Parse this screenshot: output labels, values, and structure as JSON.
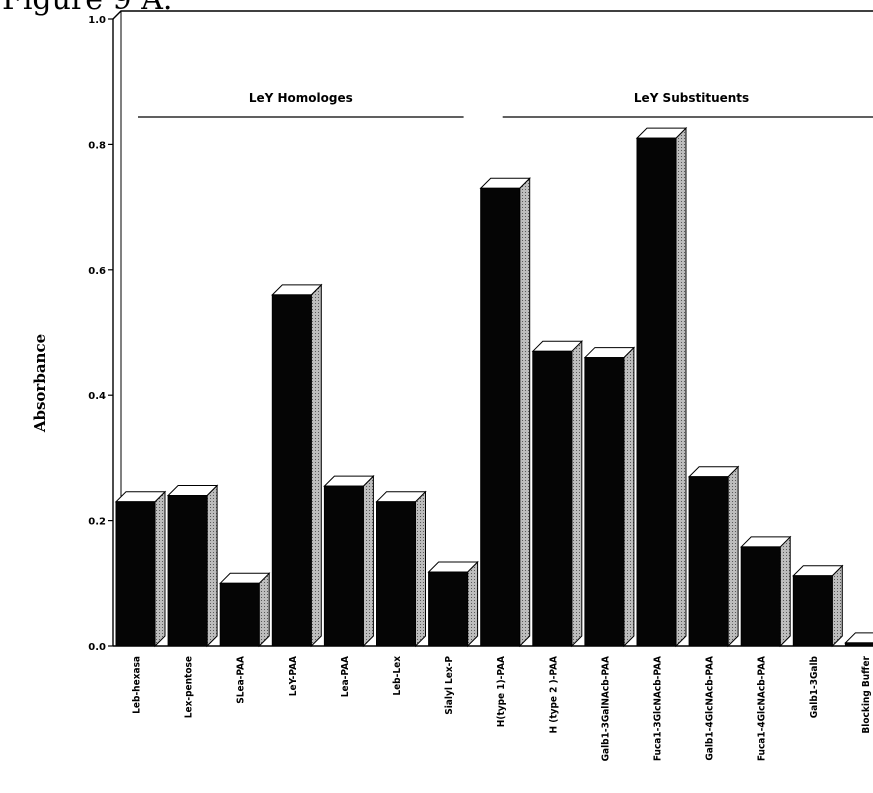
{
  "figure_label": "Figure 9 A.",
  "chart_data": {
    "type": "bar",
    "ylabel": "Absorbance",
    "xlabel": "",
    "ylim": [
      0,
      1.0
    ],
    "yticks": [
      "0.0",
      "0.2",
      "0.4",
      "0.6",
      "0.8",
      "1.0"
    ],
    "yticks_values": [
      0,
      0.2,
      0.4,
      0.6,
      0.8,
      1.0
    ],
    "categories": [
      "Leb-hexasa",
      "Lex-pentose",
      "SLea-PAA",
      "LeY-PAA",
      "Lea-PAA",
      "Leb-Lex",
      "Sialyl Lex-P",
      "H(type 1)-PAA",
      "H (type 2 )-PAA",
      "Galb1-3GalNAcb-PAA",
      "Fuca1-3GlcNAcb-PAA",
      "Galb1-4GlcNAcb-PAA",
      "Fuca1-4GlcNAcb-PAA",
      "Galb1-3Galb",
      "Blocking Buffer"
    ],
    "values": [
      0.23,
      0.24,
      0.1,
      0.56,
      0.255,
      0.23,
      0.118,
      0.73,
      0.47,
      0.46,
      0.81,
      0.27,
      0.158,
      0.112,
      0.005
    ],
    "groups": [
      {
        "label": "LeY Homologes",
        "from": 0,
        "to": 6
      },
      {
        "label": "LeY Substituents",
        "from": 7,
        "to": 14
      }
    ],
    "colors": {
      "bar_front": "#050505",
      "bar_side": "#a8a8a8",
      "bar_top": "#ffffff"
    }
  }
}
